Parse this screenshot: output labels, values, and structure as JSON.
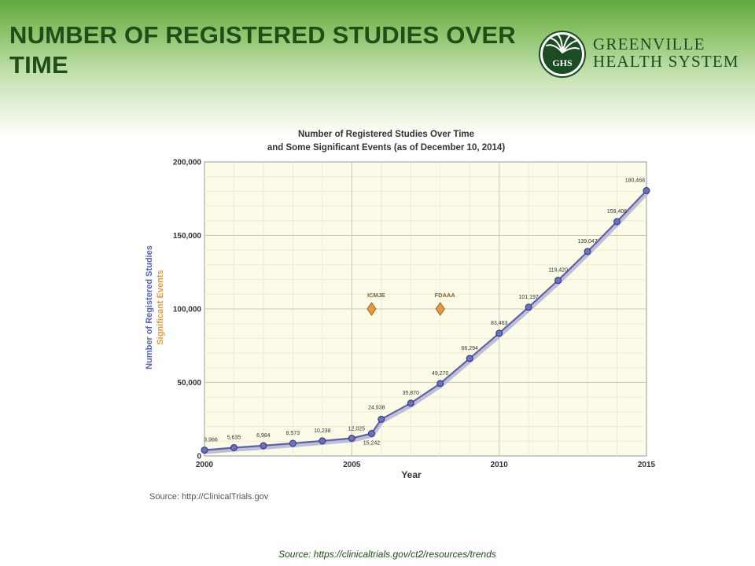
{
  "slide": {
    "title": "NUMBER OF REGISTERED STUDIES OVER TIME",
    "source": "Source: https://clinicaltrials.gov/ct2/resources/trends"
  },
  "logo": {
    "line1": "GREENVILLE",
    "line2": "HEALTH SYSTEM",
    "emblem_text": "GHS",
    "color": "#1b4c22"
  },
  "chart_data": {
    "type": "line",
    "title": [
      "Number of Registered Studies Over Time",
      "and Some Significant Events (as of December 10, 2014)"
    ],
    "xlabel": "Year",
    "ylabel": "Number of Registered Studies",
    "ylabel2": "Significant Events",
    "xlim": [
      2000,
      2015
    ],
    "ylim": [
      0,
      200000
    ],
    "xticks": [
      2000,
      2005,
      2010,
      2015
    ],
    "yticks": [
      0,
      50000,
      100000,
      150000,
      200000
    ],
    "ytick_labels": [
      "0",
      "50,000",
      "100,000",
      "150,000",
      "200,000"
    ],
    "grid": true,
    "series": [
      {
        "color": "#5a5fb0",
        "points": [
          {
            "x": 2000.0,
            "y": 3966,
            "label": "3,966"
          },
          {
            "x": 2001.0,
            "y": 5635,
            "label": "5,635"
          },
          {
            "x": 2002.0,
            "y": 6984,
            "label": "6,984"
          },
          {
            "x": 2003.0,
            "y": 8573,
            "label": "8,573"
          },
          {
            "x": 2004.0,
            "y": 10238,
            "label": "10,238"
          },
          {
            "x": 2005.0,
            "y": 12025,
            "label": "12,025"
          },
          {
            "x": 2005.67,
            "y": 15242,
            "label": "15,242"
          },
          {
            "x": 2006.0,
            "y": 24938,
            "label": "24,938"
          },
          {
            "x": 2007.0,
            "y": 35870,
            "label": "35,870"
          },
          {
            "x": 2008.0,
            "y": 49270,
            "label": "49,270"
          },
          {
            "x": 2009.0,
            "y": 66294,
            "label": "66,294"
          },
          {
            "x": 2010.0,
            "y": 83463,
            "label": "83,463"
          },
          {
            "x": 2011.0,
            "y": 101197,
            "label": "101,197"
          },
          {
            "x": 2012.0,
            "y": 119420,
            "label": "119,420"
          },
          {
            "x": 2013.0,
            "y": 139047,
            "label": "139,047"
          },
          {
            "x": 2014.0,
            "y": 159406,
            "label": "159,406"
          },
          {
            "x": 2015.0,
            "y": 180468,
            "label": "180,468"
          }
        ]
      }
    ],
    "events": [
      {
        "label": "ICMJE",
        "x": 2005.67,
        "y": 100000
      },
      {
        "label": "FDAAA",
        "x": 2008.0,
        "y": 100000
      }
    ],
    "colors": {
      "plot_background": "#fbfbe8",
      "line": "#5a5fb0",
      "marker_fill": "#6a70c0",
      "event_marker": "#e69a3e",
      "ylabel": "#5a5fb0",
      "ylabel2": "#e69a3e"
    },
    "source": "Source: http://ClinicalTrials.gov"
  }
}
